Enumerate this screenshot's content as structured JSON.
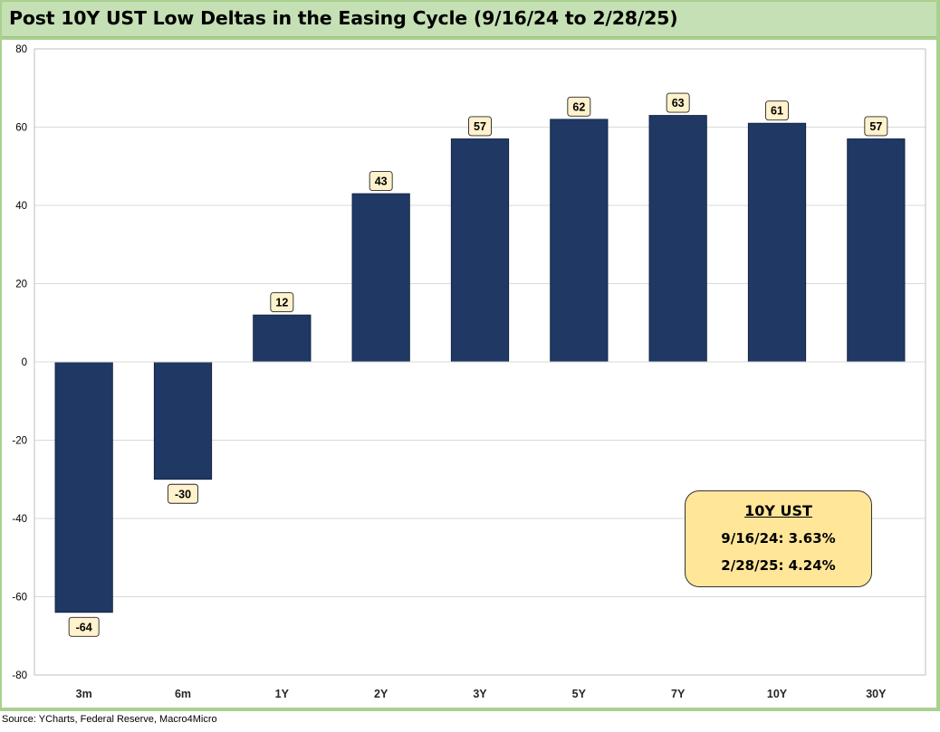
{
  "title": "Post 10Y UST Low Deltas in the Easing Cycle (9/16/24 to 2/28/25)",
  "source": "Source: YCharts, Federal Reserve, Macro4Micro",
  "callout": {
    "title": "10Y UST",
    "line1": "9/16/24: 3.63%",
    "line2": "2/28/25: 4.24%"
  },
  "colors": {
    "bar": "#1f3864",
    "frame": "#a9d18e",
    "title_bar": "#c5e0b4",
    "label_bg": "#fff2cc",
    "callout_bg": "#ffe699"
  },
  "chart_data": {
    "type": "bar",
    "categories": [
      "3m",
      "6m",
      "1Y",
      "2Y",
      "3Y",
      "5Y",
      "7Y",
      "10Y",
      "30Y"
    ],
    "values": [
      -64,
      -30,
      12,
      43,
      57,
      62,
      63,
      61,
      57
    ],
    "ylim": [
      -80,
      80
    ],
    "yticks": [
      -80,
      -60,
      -40,
      -20,
      0,
      20,
      40,
      60,
      80
    ],
    "grid": true,
    "legend": "none"
  }
}
